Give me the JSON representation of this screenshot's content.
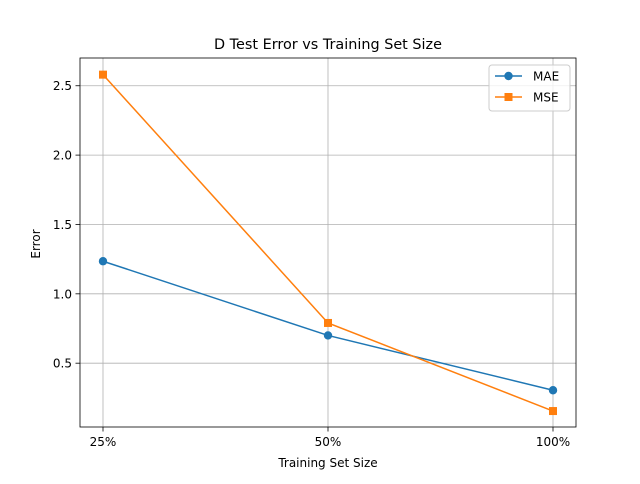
{
  "chart_data": {
    "type": "line",
    "title": "D Test Error vs Training Set Size",
    "xlabel": "Training Set Size",
    "ylabel": "Error",
    "categories": [
      "25%",
      "50%",
      "100%"
    ],
    "yticks": [
      0.5,
      1.0,
      1.5,
      2.0,
      2.5
    ],
    "ytick_labels": [
      "0.5",
      "1.0",
      "1.5",
      "2.0",
      "2.5"
    ],
    "ylim": [
      0.04,
      2.7
    ],
    "grid": true,
    "legend_position": "top-right",
    "series": [
      {
        "name": "MAE",
        "values": [
          1.235,
          0.7,
          0.305
        ],
        "color": "#1f77b4",
        "marker": "circle"
      },
      {
        "name": "MSE",
        "values": [
          2.58,
          0.79,
          0.155
        ],
        "color": "#ff7f0e",
        "marker": "square"
      }
    ]
  }
}
